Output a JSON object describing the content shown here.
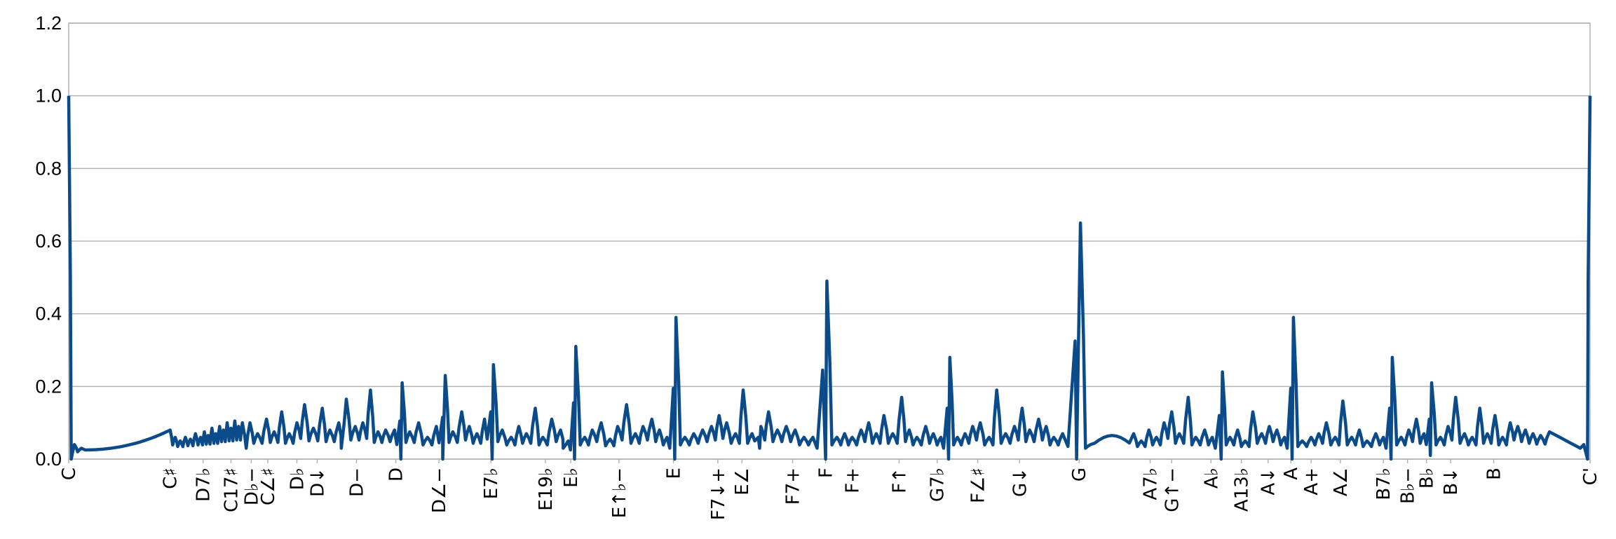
{
  "chart_data": {
    "type": "line",
    "title": "",
    "xlabel": "",
    "ylabel": "",
    "ylim": [
      0,
      1.2
    ],
    "y_ticks": [
      "0.0",
      "0.2",
      "0.4",
      "0.6",
      "0.8",
      "1.0",
      "1.2"
    ],
    "x_range": [
      0,
      1200
    ],
    "grid": "horizontal",
    "legend": "none",
    "series_color": "#0b4b8a",
    "categories": [
      {
        "label": "C",
        "x": 0
      },
      {
        "label": "C♯",
        "x": 80
      },
      {
        "label": "D7♭",
        "x": 106
      },
      {
        "label": "C17♯",
        "x": 128
      },
      {
        "label": "D♭−",
        "x": 144
      },
      {
        "label": "C∠♯",
        "x": 157
      },
      {
        "label": "D♭",
        "x": 180
      },
      {
        "label": "D↓",
        "x": 196
      },
      {
        "label": "D−",
        "x": 227
      },
      {
        "label": "D",
        "x": 258
      },
      {
        "label": "D∠−",
        "x": 292
      },
      {
        "label": "E7♭",
        "x": 333
      },
      {
        "label": "E19♭",
        "x": 376
      },
      {
        "label": "E♭",
        "x": 396
      },
      {
        "label": "E↑♭−",
        "x": 434
      },
      {
        "label": "E",
        "x": 477
      },
      {
        "label": "F7↓+",
        "x": 512
      },
      {
        "label": "E∠",
        "x": 531
      },
      {
        "label": "F7+",
        "x": 571
      },
      {
        "label": "F",
        "x": 597
      },
      {
        "label": "F+",
        "x": 618
      },
      {
        "label": "F↑",
        "x": 655
      },
      {
        "label": "G7♭",
        "x": 685
      },
      {
        "label": "F∠♯",
        "x": 717
      },
      {
        "label": "G↓",
        "x": 750
      },
      {
        "label": "G",
        "x": 797
      },
      {
        "label": "A7♭",
        "x": 853
      },
      {
        "label": "G↑−",
        "x": 870
      },
      {
        "label": "A♭",
        "x": 901
      },
      {
        "label": "A13♭",
        "x": 925
      },
      {
        "label": "A↓",
        "x": 946
      },
      {
        "label": "A",
        "x": 964
      },
      {
        "label": "A+",
        "x": 980
      },
      {
        "label": "A∠",
        "x": 1003
      },
      {
        "label": "B7♭",
        "x": 1037
      },
      {
        "label": "B♭−",
        "x": 1056
      },
      {
        "label": "B♭",
        "x": 1071
      },
      {
        "label": "B↓",
        "x": 1090
      },
      {
        "label": "B",
        "x": 1124
      },
      {
        "label": "C'",
        "x": 1200
      }
    ],
    "peaks": [
      [
        0,
        1.0
      ],
      [
        4.5,
        0.04
      ],
      [
        10,
        0.03
      ],
      [
        80,
        0.08
      ],
      [
        84,
        0.06
      ],
      [
        88,
        0.05
      ],
      [
        92,
        0.06
      ],
      [
        96,
        0.055
      ],
      [
        100,
        0.07
      ],
      [
        104,
        0.06
      ],
      [
        107,
        0.075
      ],
      [
        110,
        0.065
      ],
      [
        113,
        0.085
      ],
      [
        116,
        0.07
      ],
      [
        119,
        0.09
      ],
      [
        122,
        0.08
      ],
      [
        125,
        0.1
      ],
      [
        128,
        0.085
      ],
      [
        131,
        0.105
      ],
      [
        134,
        0.09
      ],
      [
        137,
        0.1
      ],
      [
        143,
        0.1
      ],
      [
        149,
        0.07
      ],
      [
        156,
        0.11
      ],
      [
        162,
        0.075
      ],
      [
        168,
        0.13
      ],
      [
        174,
        0.07
      ],
      [
        180,
        0.1
      ],
      [
        186,
        0.15
      ],
      [
        193,
        0.085
      ],
      [
        200,
        0.14
      ],
      [
        206,
        0.08
      ],
      [
        213,
        0.1
      ],
      [
        219,
        0.165
      ],
      [
        226,
        0.09
      ],
      [
        232,
        0.1
      ],
      [
        238,
        0.19
      ],
      [
        244,
        0.075
      ],
      [
        250,
        0.08
      ],
      [
        257,
        0.08
      ],
      [
        263,
        0.21
      ],
      [
        269,
        0.075
      ],
      [
        276,
        0.1
      ],
      [
        283,
        0.06
      ],
      [
        290,
        0.09
      ],
      [
        297,
        0.23
      ],
      [
        303,
        0.075
      ],
      [
        310,
        0.13
      ],
      [
        316,
        0.09
      ],
      [
        322,
        0.07
      ],
      [
        328,
        0.11
      ],
      [
        335,
        0.26
      ],
      [
        342,
        0.08
      ],
      [
        349,
        0.06
      ],
      [
        355,
        0.09
      ],
      [
        361,
        0.07
      ],
      [
        368,
        0.14
      ],
      [
        374,
        0.06
      ],
      [
        381,
        0.11
      ],
      [
        388,
        0.08
      ],
      [
        394,
        0.05
      ],
      [
        400,
        0.31
      ],
      [
        407,
        0.06
      ],
      [
        413,
        0.08
      ],
      [
        420,
        0.1
      ],
      [
        427,
        0.055
      ],
      [
        433,
        0.09
      ],
      [
        440,
        0.15
      ],
      [
        447,
        0.07
      ],
      [
        453,
        0.09
      ],
      [
        460,
        0.11
      ],
      [
        466,
        0.08
      ],
      [
        472,
        0.06
      ],
      [
        479,
        0.39
      ],
      [
        486,
        0.06
      ],
      [
        493,
        0.07
      ],
      [
        500,
        0.08
      ],
      [
        507,
        0.09
      ],
      [
        513,
        0.12
      ],
      [
        519,
        0.1
      ],
      [
        526,
        0.07
      ],
      [
        532,
        0.19
      ],
      [
        539,
        0.07
      ],
      [
        546,
        0.09
      ],
      [
        552,
        0.13
      ],
      [
        559,
        0.08
      ],
      [
        566,
        0.09
      ],
      [
        573,
        0.08
      ],
      [
        580,
        0.06
      ],
      [
        587,
        0.06
      ],
      [
        598,
        0.49
      ],
      [
        606,
        0.06
      ],
      [
        612,
        0.07
      ],
      [
        618,
        0.06
      ],
      [
        625,
        0.08
      ],
      [
        631,
        0.1
      ],
      [
        637,
        0.07
      ],
      [
        643,
        0.12
      ],
      [
        650,
        0.07
      ],
      [
        657,
        0.17
      ],
      [
        663,
        0.08
      ],
      [
        669,
        0.06
      ],
      [
        676,
        0.09
      ],
      [
        682,
        0.07
      ],
      [
        688,
        0.06
      ],
      [
        695,
        0.28
      ],
      [
        701,
        0.06
      ],
      [
        707,
        0.07
      ],
      [
        713,
        0.09
      ],
      [
        719,
        0.1
      ],
      [
        726,
        0.06
      ],
      [
        732,
        0.19
      ],
      [
        739,
        0.07
      ],
      [
        746,
        0.09
      ],
      [
        752,
        0.14
      ],
      [
        758,
        0.08
      ],
      [
        765,
        0.11
      ],
      [
        771,
        0.09
      ],
      [
        777,
        0.06
      ],
      [
        784,
        0.07
      ],
      [
        798,
        0.65
      ],
      [
        806,
        0.04
      ],
      [
        840,
        0.07
      ],
      [
        846,
        0.05
      ],
      [
        852,
        0.08
      ],
      [
        858,
        0.06
      ],
      [
        864,
        0.1
      ],
      [
        870,
        0.13
      ],
      [
        876,
        0.07
      ],
      [
        883,
        0.17
      ],
      [
        889,
        0.06
      ],
      [
        896,
        0.08
      ],
      [
        902,
        0.06
      ],
      [
        910,
        0.24
      ],
      [
        916,
        0.06
      ],
      [
        922,
        0.08
      ],
      [
        928,
        0.05
      ],
      [
        934,
        0.13
      ],
      [
        941,
        0.07
      ],
      [
        947,
        0.09
      ],
      [
        953,
        0.08
      ],
      [
        959,
        0.06
      ],
      [
        966,
        0.39
      ],
      [
        973,
        0.05
      ],
      [
        980,
        0.06
      ],
      [
        986,
        0.07
      ],
      [
        992,
        0.1
      ],
      [
        999,
        0.06
      ],
      [
        1005,
        0.16
      ],
      [
        1012,
        0.06
      ],
      [
        1018,
        0.08
      ],
      [
        1024,
        0.05
      ],
      [
        1031,
        0.07
      ],
      [
        1037,
        0.06
      ],
      [
        1044,
        0.28
      ],
      [
        1051,
        0.06
      ],
      [
        1057,
        0.08
      ],
      [
        1063,
        0.11
      ],
      [
        1069,
        0.07
      ],
      [
        1075,
        0.21
      ],
      [
        1082,
        0.06
      ],
      [
        1088,
        0.09
      ],
      [
        1094,
        0.17
      ],
      [
        1101,
        0.07
      ],
      [
        1107,
        0.06
      ],
      [
        1113,
        0.14
      ],
      [
        1119,
        0.07
      ],
      [
        1125,
        0.12
      ],
      [
        1131,
        0.06
      ],
      [
        1137,
        0.1
      ],
      [
        1143,
        0.09
      ],
      [
        1149,
        0.08
      ],
      [
        1155,
        0.07
      ],
      [
        1161,
        0.065
      ],
      [
        1168,
        0.075
      ],
      [
        1195,
        0.04
      ],
      [
        1200,
        1.0
      ]
    ],
    "dips": [
      [
        2,
        0.0
      ],
      [
        7,
        0.02
      ],
      [
        140,
        0.03
      ],
      [
        215,
        0.03
      ],
      [
        262,
        0.0
      ],
      [
        295,
        0.0
      ],
      [
        334,
        0.0
      ],
      [
        390,
        0.03
      ],
      [
        399,
        0.0
      ],
      [
        478,
        0.0
      ],
      [
        545,
        0.03
      ],
      [
        597,
        0.0
      ],
      [
        694,
        0.0
      ],
      [
        797,
        0.0
      ],
      [
        795,
        0.0
      ],
      [
        909,
        0.0
      ],
      [
        965,
        0.0
      ],
      [
        1043,
        0.0
      ],
      [
        1074,
        0.01
      ],
      [
        1198,
        0.0
      ]
    ]
  }
}
